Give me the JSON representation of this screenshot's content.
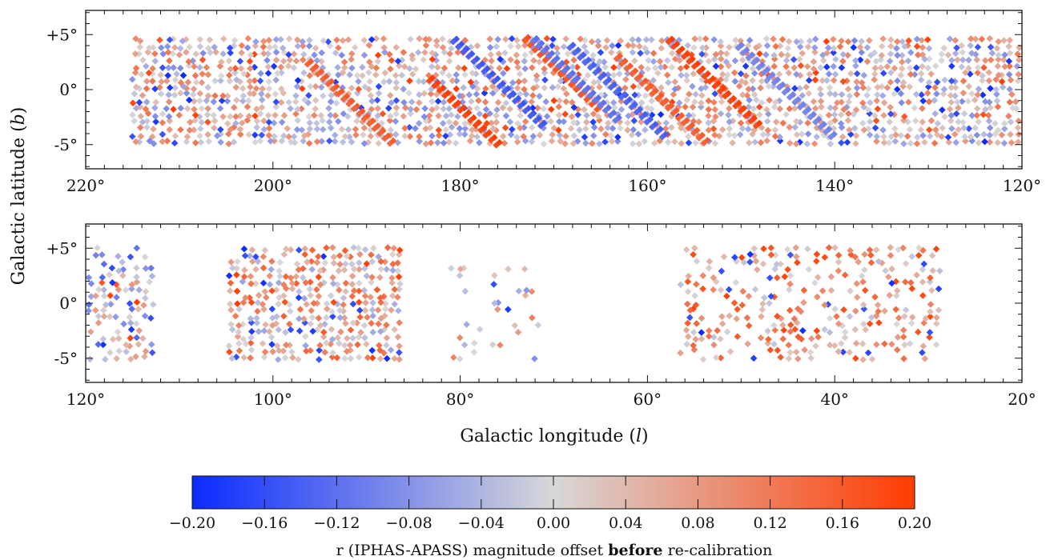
{
  "chart_data": {
    "type": "scatter",
    "panels": [
      {
        "xlim": [
          220,
          120
        ],
        "ylim": [
          -7.2,
          7.2
        ],
        "x_ticks": [
          220,
          200,
          180,
          160,
          140,
          120
        ],
        "x_tick_labels": [
          "220°",
          "200°",
          "180°",
          "160°",
          "140°",
          "120°"
        ],
        "y_ticks": [
          5,
          0,
          -5
        ],
        "y_tick_labels": [
          "+5°",
          "0°",
          "-5°"
        ],
        "coverage_l": [
          120.5,
          215.5
        ],
        "stripes": [
          {
            "l": 191,
            "b": -1.5,
            "value": 0.16
          },
          {
            "l": 178,
            "b": -3.0,
            "value": 0.2
          },
          {
            "l": 170,
            "b": 2.5,
            "value": 0.18
          },
          {
            "l": 158,
            "b": -1.0,
            "value": 0.16
          },
          {
            "l": 153,
            "b": 1.0,
            "value": 0.2
          },
          {
            "l": 176,
            "b": 1.0,
            "value": -0.15
          },
          {
            "l": 163,
            "b": 0.0,
            "value": -0.14
          },
          {
            "l": 168,
            "b": 1.5,
            "value": -0.12
          },
          {
            "l": 145,
            "b": 0.0,
            "value": -0.1
          }
        ]
      },
      {
        "xlim": [
          120,
          20
        ],
        "ylim": [
          -7.2,
          7.2
        ],
        "x_ticks": [
          120,
          100,
          80,
          60,
          40,
          20
        ],
        "x_tick_labels": [
          "120°",
          "100°",
          "80°",
          "60°",
          "40°",
          "20°"
        ],
        "y_ticks": [
          5,
          0,
          -5
        ],
        "y_tick_labels": [
          "+5°",
          "0°",
          "-5°"
        ],
        "coverage_regions": [
          {
            "l": [
              113.0,
              120.0
            ],
            "b": [
              -5.0,
              5.0
            ],
            "density": 0.55,
            "bias": -0.02
          },
          {
            "l": [
              86.5,
              105.0
            ],
            "b": [
              -5.0,
              5.0
            ],
            "density": 0.75,
            "bias": 0.05
          },
          {
            "l": [
              71.5,
              81.0
            ],
            "b": [
              -5.0,
              3.5
            ],
            "density": 0.15,
            "bias": 0.02
          },
          {
            "l": [
              29.0,
              57.0
            ],
            "b": [
              -5.0,
              5.0
            ],
            "density": 0.45,
            "bias": 0.08
          }
        ]
      }
    ],
    "ylabel": "Galactic latitude (b)",
    "xlabel": "Galactic longitude (l)",
    "colorbar": {
      "vmin": -0.2,
      "vmax": 0.2,
      "ticks": [
        -0.2,
        -0.16,
        -0.12,
        -0.08,
        -0.04,
        0.0,
        0.04,
        0.08,
        0.12,
        0.16,
        0.2
      ],
      "tick_labels": [
        "−0.20",
        "−0.16",
        "−0.12",
        "−0.08",
        "−0.04",
        "0.00",
        "0.04",
        "0.08",
        "0.12",
        "0.16",
        "0.20"
      ],
      "colors": [
        "#0a2bff",
        "#d8d8d8",
        "#ff3c00"
      ],
      "label_parts": [
        "r (IPHAS-APASS) magnitude offset ",
        "before",
        " re-calibration"
      ]
    }
  }
}
